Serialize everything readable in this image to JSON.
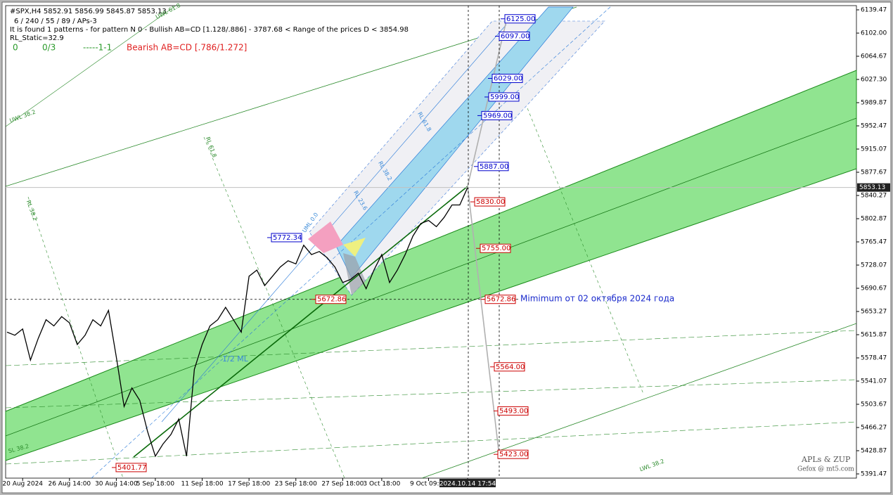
{
  "chart_data": {
    "type": "line",
    "title": "#SPX,H4  5852.91 5856.99 5845.87 5853.13",
    "subtitle": "6 / 240 / 55 / 89 / APs-3",
    "categories": [
      null,
      null,
      "20 Aug 2024",
      null,
      null,
      null,
      null,
      null,
      "26 Aug 14:00",
      null,
      null,
      null,
      null,
      null,
      "30 Aug 14:00",
      null,
      null,
      null,
      null,
      "5 Sep 18:00",
      null,
      null,
      null,
      null,
      null,
      "11 Sep 18:00",
      null,
      null,
      null,
      null,
      null,
      "17 Sep 18:00",
      null,
      null,
      null,
      null,
      null,
      "23 Sep 18:00",
      null,
      null,
      null,
      null,
      null,
      "27 Sep 18:00",
      null,
      null,
      null,
      null,
      "3 Oct 18:00",
      null,
      null,
      null,
      null,
      null,
      "9 Oct 09:00",
      null,
      null,
      null,
      null,
      "2024.10.14 17:54"
    ],
    "values": [
      5620,
      5615,
      5625,
      5575,
      5610,
      5640,
      5630,
      5645,
      5635,
      5600,
      5615,
      5640,
      5630,
      5655,
      5580,
      5500,
      5530,
      5510,
      5460,
      5420,
      5440,
      5455,
      5480,
      5420,
      5560,
      5600,
      5630,
      5640,
      5660,
      5640,
      5620,
      5710,
      5720,
      5695,
      5710,
      5725,
      5735,
      5730,
      5760,
      5745,
      5750,
      5740,
      5725,
      5700,
      5705,
      5715,
      5690,
      5720,
      5745,
      5700,
      5720,
      5745,
      5775,
      5795,
      5800,
      5790,
      5805,
      5825,
      5825,
      5853.13
    ],
    "color": "#000000",
    "ylim": [
      5384.67,
      6146.27
    ],
    "yticks": [
      6139.47,
      {
        "value": 6102,
        "label": "6102.00"
      },
      6064.67,
      {
        "value": 6027.3,
        "label": "6027.30"
      },
      5989.87,
      5952.47,
      5915.07,
      5877.67,
      5840.27,
      5802.87,
      5765.47,
      5728.07,
      5690.67,
      5653.27,
      5615.87,
      5578.47,
      5541.07,
      5503.67,
      5466.27,
      5428.87,
      5391.47
    ],
    "current_price": {
      "value": 5853.13,
      "label": "5853.13"
    },
    "levels": [
      {
        "value": 6125,
        "label": "6125.00",
        "color": "#0000cc"
      },
      {
        "value": 6097,
        "label": "6097.00",
        "color": "#0000cc"
      },
      {
        "value": 6029,
        "label": "6029.00",
        "color": "#0000cc"
      },
      {
        "value": 5999,
        "label": "5999.00",
        "color": "#0000cc"
      },
      {
        "value": 5969,
        "label": "5969.00",
        "color": "#0000cc"
      },
      {
        "value": 5887,
        "label": "5887.00",
        "color": "#0000cc"
      },
      {
        "value": 5830,
        "label": "5830.00",
        "color": "#cc0000"
      },
      {
        "value": 5755,
        "label": "5755.00",
        "color": "#cc0000"
      },
      {
        "value": 5672.86,
        "label": "5672.86",
        "color": "#cc0000"
      },
      {
        "value": 5564,
        "label": "5564.00",
        "color": "#cc0000"
      },
      {
        "value": 5493,
        "label": "5493.00",
        "color": "#cc0000"
      },
      {
        "value": 5423,
        "label": "5423.00",
        "color": "#cc0000"
      },
      {
        "value": 5772.34,
        "label": "5772.34",
        "color": "#0000cc"
      },
      {
        "value": 5401.77,
        "label": "5401.77",
        "color": "#cc0000"
      },
      {
        "value": 5672.86,
        "label": "5672.86",
        "color": "#cc0000"
      }
    ]
  },
  "overlay": {
    "info_line": "It is found 1 patterns  -  for pattern N 0 - Bullish AB=CD [1.128/.886] - 3787.68 < Range of the prices D < 3854.98",
    "rl_static": "RL_Static=32.9",
    "status": [
      "0",
      "0/3",
      "-----1-1"
    ],
    "pattern": "Bearish AB=CD [.786/1.272]",
    "minimum_note": "Mimimum от 02 октября 2024 года",
    "half_ml": "1/2 ML",
    "line_labels": [
      "UWL 61.8",
      "RL 61.8",
      "UML 0.0",
      "RL 23.6",
      "RL 38.2",
      "RL 61.8",
      "LWL 38.2",
      "SL 38.2",
      "UWL 38.2",
      "RL 38.2"
    ],
    "brand": "APLs & ZUP",
    "credit": "Gefox @ mt5.com"
  }
}
